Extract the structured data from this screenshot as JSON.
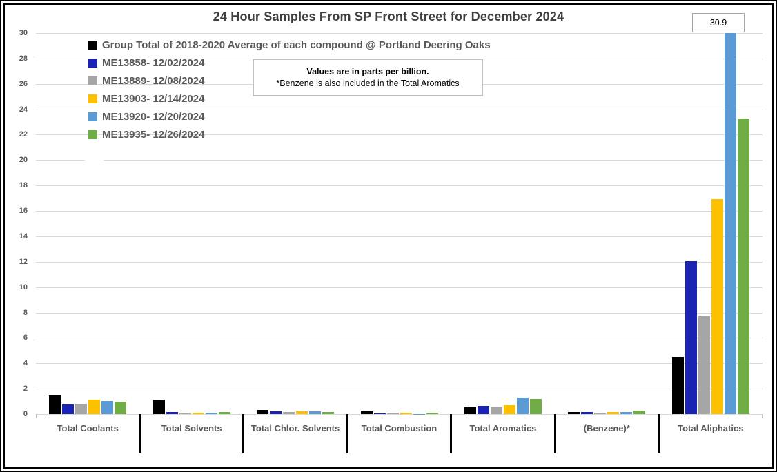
{
  "title": "24 Hour Samples From SP Front Street for December 2024",
  "annotation": {
    "line1": "Values are in parts per billion.",
    "line2": "*Benzene is also included in the Total Aromatics"
  },
  "clipped_bar_label": "30.9",
  "chart_data": {
    "type": "bar",
    "title": "24 Hour Samples From SP Front Street for December 2024",
    "unit": "parts per billion",
    "categories": [
      "Total Coolants",
      "Total Solvents",
      "Total Chlor. Solvents",
      "Total Combustion",
      "Total Aromatics",
      "(Benzene)*",
      "Total Aliphatics"
    ],
    "series": [
      {
        "name": "Group Total of 2018-2020 Average of each compound @ Portland Deering Oaks",
        "color": "#000000",
        "values": [
          1.5,
          1.15,
          0.35,
          0.25,
          0.55,
          0.15,
          4.5
        ]
      },
      {
        "name": "ME13858- 12/02/2024",
        "color": "#1b23b2",
        "values": [
          0.75,
          0.18,
          0.22,
          0.08,
          0.65,
          0.15,
          12.05
        ]
      },
      {
        "name": "ME13889- 12/08/2024",
        "color": "#a6a6a6",
        "values": [
          0.8,
          0.12,
          0.15,
          0.1,
          0.6,
          0.12,
          7.7
        ]
      },
      {
        "name": "ME13903- 12/14/2024",
        "color": "#ffc000",
        "values": [
          1.15,
          0.1,
          0.2,
          0.1,
          0.7,
          0.15,
          16.9
        ]
      },
      {
        "name": "ME13920- 12/20/2024",
        "color": "#5b9bd5",
        "values": [
          1.05,
          0.1,
          0.2,
          0.02,
          1.3,
          0.18,
          30.9
        ]
      },
      {
        "name": "ME13935- 12/26/2024",
        "color": "#70ad47",
        "values": [
          1.0,
          0.18,
          0.15,
          0.12,
          1.2,
          0.25,
          23.3
        ]
      }
    ],
    "ylim": [
      0,
      30
    ],
    "ytick_step": 2,
    "grid": true,
    "legend_position": "top-left",
    "clipped_value_label": {
      "series": "ME13920- 12/20/2024",
      "category": "Total Aliphatics",
      "value": 30.9
    }
  }
}
